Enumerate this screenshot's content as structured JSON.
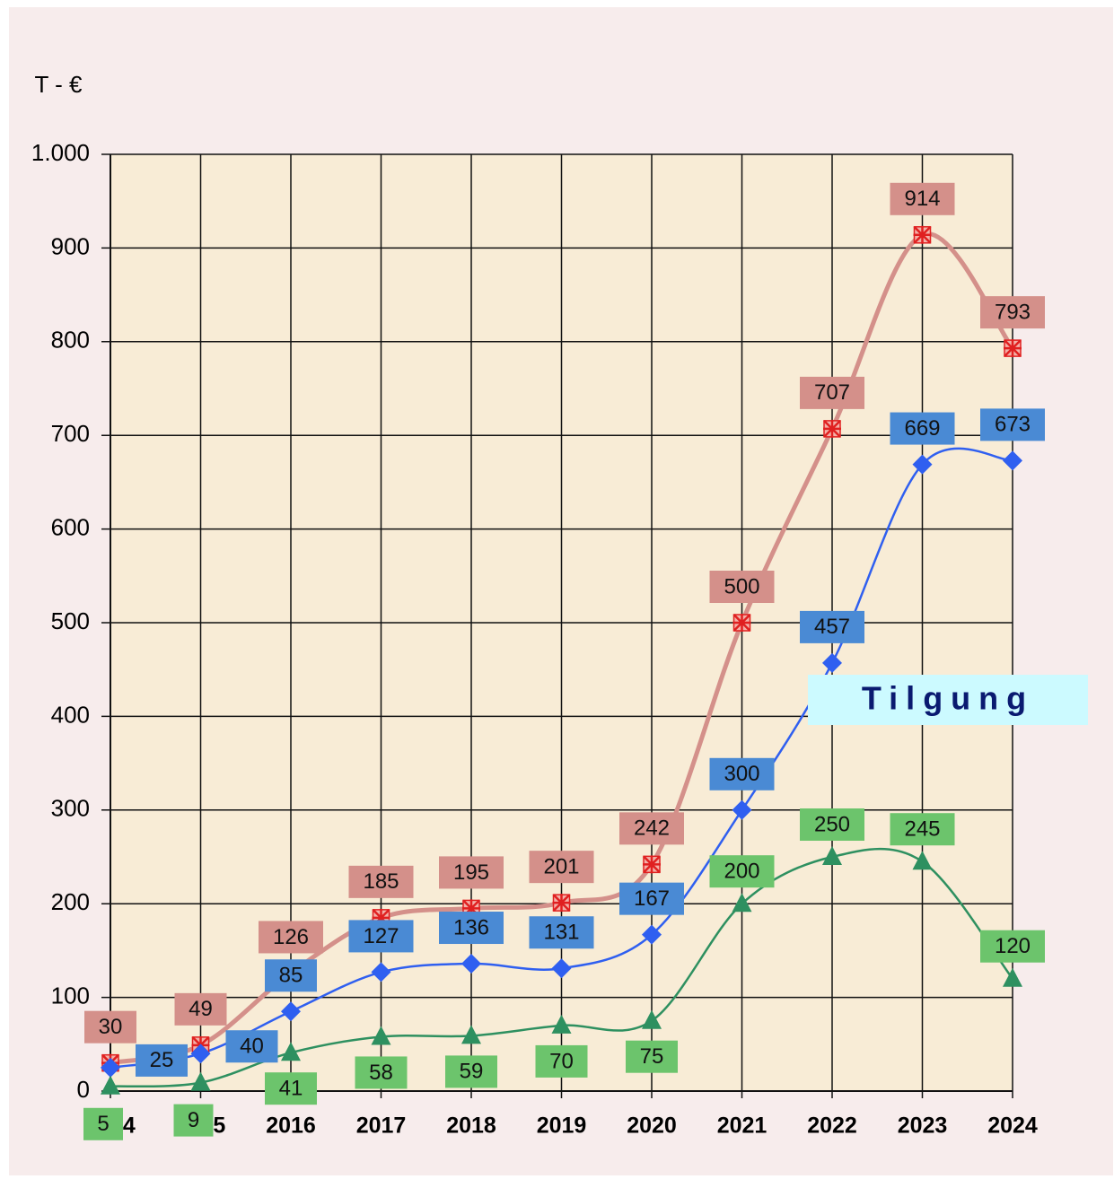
{
  "chart_data": {
    "type": "line",
    "ylabel": "T - €",
    "annotation": "Tilgung",
    "categories": [
      "2014",
      "2015",
      "2016",
      "2017",
      "2018",
      "2019",
      "2020",
      "2021",
      "2022",
      "2023",
      "2024"
    ],
    "series": [
      {
        "color": "#d4908a",
        "values": [
          30,
          49,
          126,
          185,
          195,
          201,
          242,
          500,
          707,
          914,
          793
        ]
      },
      {
        "color": "#2f5ff0",
        "values": [
          25,
          40,
          85,
          127,
          136,
          131,
          167,
          300,
          457,
          669,
          673
        ]
      },
      {
        "color": "#2e9060",
        "values": [
          5,
          9,
          41,
          58,
          59,
          70,
          75,
          200,
          250,
          245,
          120
        ]
      }
    ],
    "ylim": [
      0,
      1000
    ],
    "yticks": [
      0,
      100,
      200,
      300,
      400,
      500,
      600,
      700,
      800,
      900,
      {
        "value": 1000,
        "label": "1.000"
      }
    ],
    "grid": true
  }
}
